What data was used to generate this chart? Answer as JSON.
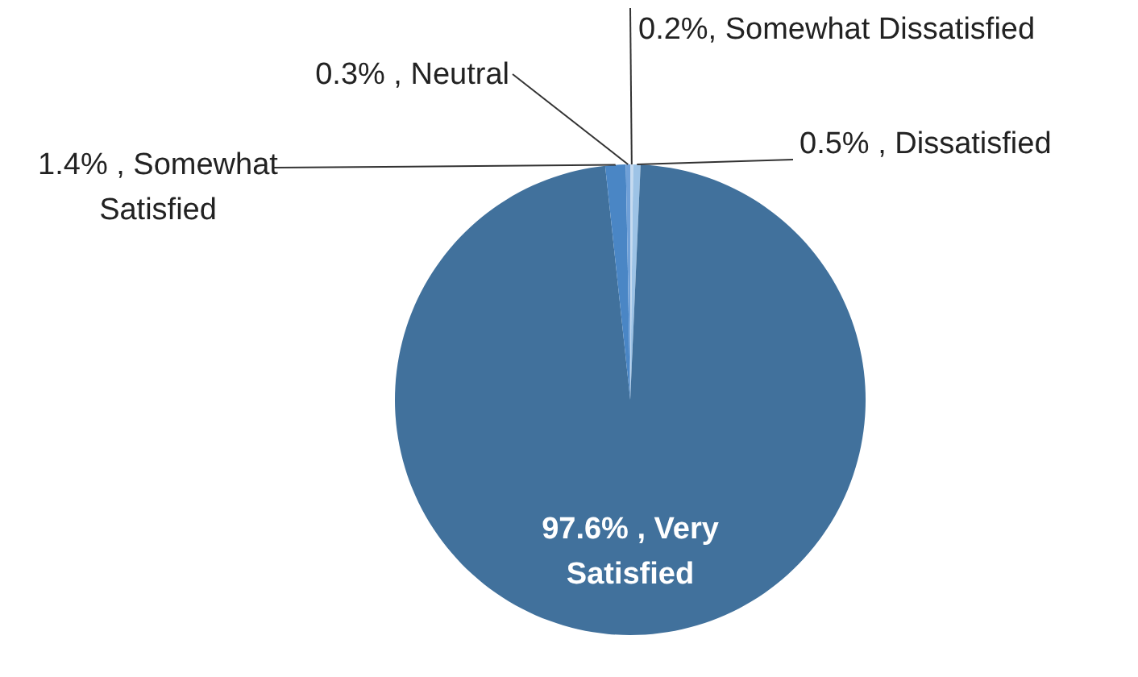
{
  "chart_data": {
    "type": "pie",
    "categories": [
      "Somewhat Dissatisfied",
      "Dissatisfied",
      "Very Satisfied",
      "Somewhat Satisfied",
      "Neutral"
    ],
    "values": [
      0.2,
      0.5,
      97.6,
      1.4,
      0.3
    ],
    "colors": [
      "#c5daf0",
      "#9dc3e6",
      "#41719c",
      "#4a86c5",
      "#6fa0d8"
    ],
    "value_labels": [
      "0.2%,",
      "0.5% ,",
      "97.6% ,",
      "1.4% ,",
      "0.3% ,"
    ]
  }
}
